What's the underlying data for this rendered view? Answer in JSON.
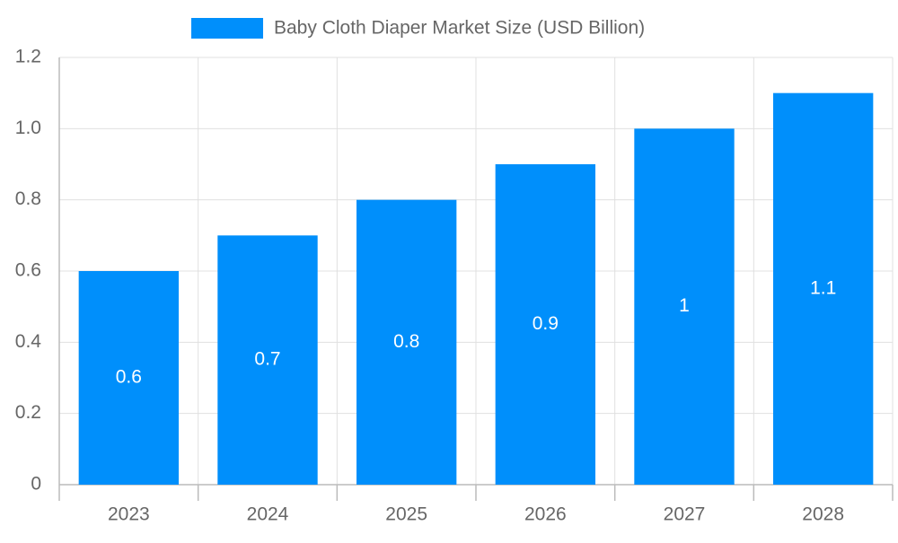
{
  "chart_data": {
    "type": "bar",
    "categories": [
      "2023",
      "2024",
      "2025",
      "2026",
      "2027",
      "2028"
    ],
    "series": [
      {
        "name": "Baby Cloth Diaper Market Size (USD Billion)",
        "color": "#008ffb",
        "values": [
          0.6,
          0.7,
          0.8,
          0.9,
          1,
          1.1
        ]
      }
    ],
    "ylim": [
      0,
      1.2
    ],
    "yticks": [
      0,
      0.2,
      0.4,
      0.6,
      0.8,
      {
        "value": 1,
        "label": "1.0"
      },
      1.2
    ],
    "grid": true,
    "legend": "top"
  }
}
